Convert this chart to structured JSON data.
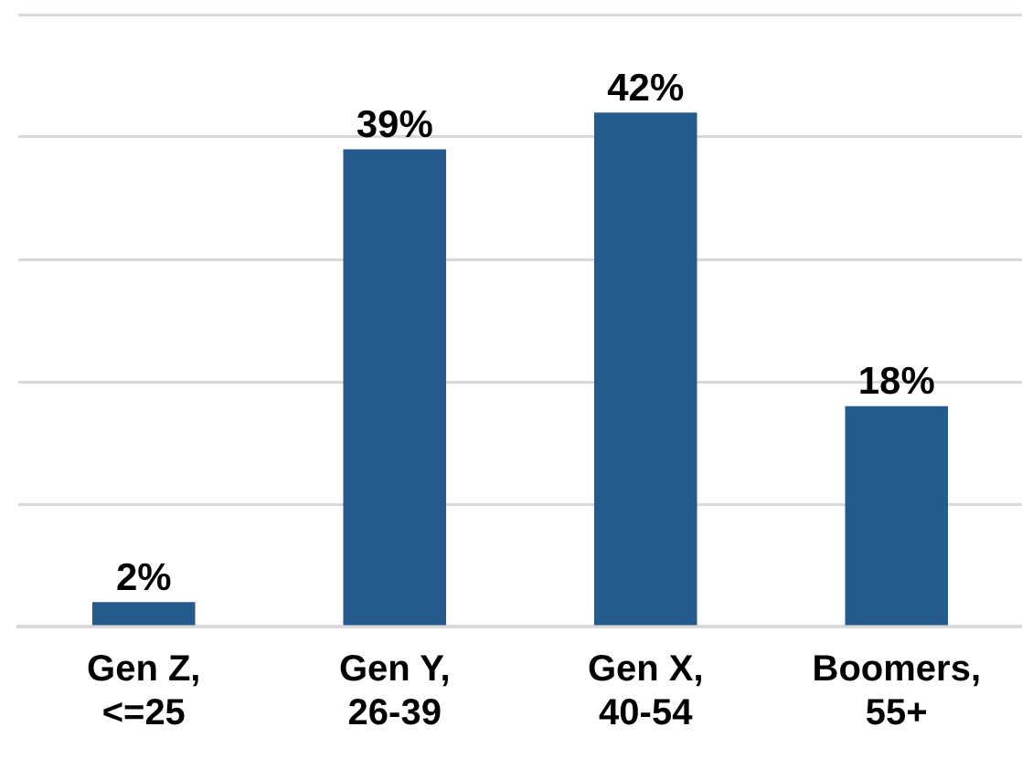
{
  "chart_data": {
    "type": "bar",
    "categories": [
      "Gen Z, <=25",
      "Gen Y, 26-39",
      "Gen X, 40-54",
      "Boomers, 55+"
    ],
    "values": [
      2,
      39,
      42,
      18
    ],
    "value_labels": [
      "2%",
      "39%",
      "42%",
      "18%"
    ],
    "color": "#245a8c",
    "ylim": [
      0,
      50
    ],
    "yticks": [
      {
        "value": 0,
        "label": null
      },
      {
        "value": 10,
        "label": null
      },
      {
        "value": 20,
        "label": null
      },
      {
        "value": 30,
        "label": null
      },
      {
        "value": 40,
        "label": null
      },
      {
        "value": 50,
        "label": null
      }
    ],
    "grid": "y",
    "tick_labels": "x",
    "legend": false
  }
}
